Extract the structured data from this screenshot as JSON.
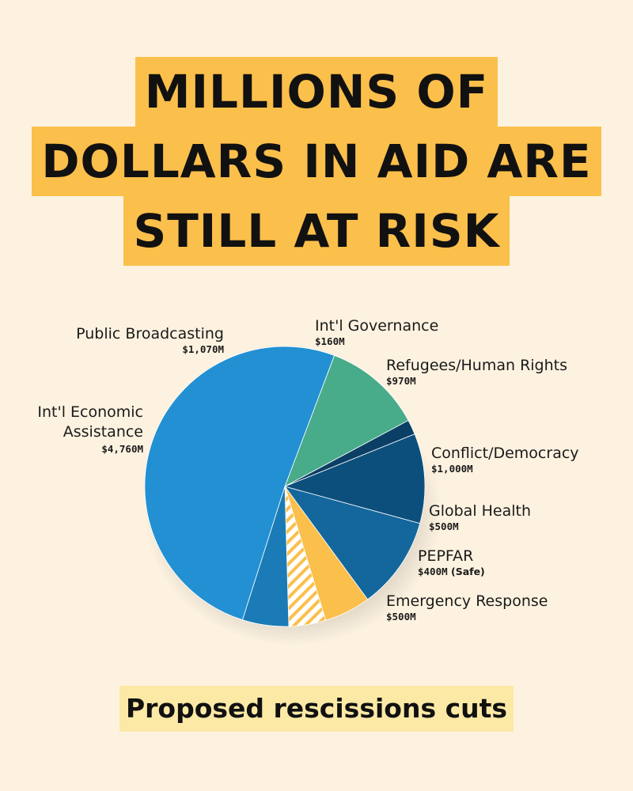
{
  "headline": {
    "lines": [
      "MILLIONS OF",
      "DOLLARS IN AID ARE",
      "STILL AT RISK"
    ],
    "highlight_color": "#fbbf4b"
  },
  "footer": {
    "caption": "Proposed rescissions cuts",
    "highlight_color": "#fde9a6"
  },
  "chart_data": {
    "type": "pie",
    "unit": "$M",
    "slices": [
      {
        "name": "Public Broadcasting",
        "value": 1070,
        "value_label": "$1,070M",
        "color": "#48ab8a"
      },
      {
        "name": "Int'l Governance",
        "value": 160,
        "value_label": "$160M",
        "color": "#0b3f66"
      },
      {
        "name": "Refugees/Human Rights",
        "value": 970,
        "value_label": "$970M",
        "color": "#0d4f7c"
      },
      {
        "name": "Conflict/Democracy",
        "value": 1000,
        "value_label": "$1,000M",
        "color": "#13679c"
      },
      {
        "name": "Global Health",
        "value": 500,
        "value_label": "$500M",
        "color": "#fbbf4b"
      },
      {
        "name": "PEPFAR",
        "value": 400,
        "value_label": "$400M",
        "note": "(Safe)",
        "color": "#fbbf4b",
        "pattern": "hatched"
      },
      {
        "name": "Emergency Response",
        "value": 500,
        "value_label": "$500M",
        "color": "#1a7bb6"
      },
      {
        "name": "Int'l Economic Assistance",
        "value": 4760,
        "value_label": "$4,760M",
        "color": "#2390d3"
      }
    ]
  }
}
